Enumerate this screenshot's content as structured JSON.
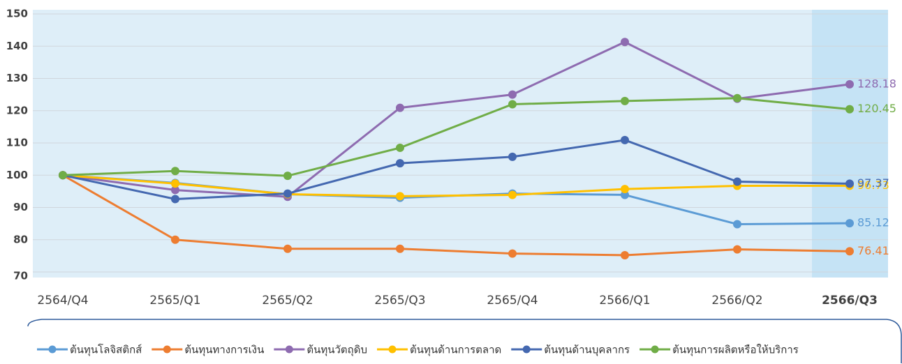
{
  "chart_data": {
    "type": "line",
    "categories": [
      "2564/Q4",
      "2565/Q1",
      "2565/Q2",
      "2565/Q3",
      "2565/Q4",
      "2566/Q1",
      "2566/Q2",
      "2566/Q3"
    ],
    "highlight_category": 7,
    "series": [
      {
        "name": "ต้นทุนโลจิสติกส์",
        "color": "#5b9bd5",
        "values": [
          100,
          97.6,
          94.1,
          93.0,
          94.3,
          93.9,
          84.8,
          85.12
        ]
      },
      {
        "name": "ต้นทุนทางการเงิน",
        "color": "#ed7d31",
        "values": [
          100,
          80.0,
          77.2,
          77.2,
          75.7,
          75.2,
          77.0,
          76.41
        ]
      },
      {
        "name": "ต้นทุนวัตถุดิบ",
        "color": "#8e6bb0",
        "values": [
          100,
          95.4,
          93.3,
          120.9,
          125.0,
          141.3,
          123.7,
          128.18
        ]
      },
      {
        "name": "ต้นทุนด้านการตลาด",
        "color": "#ffc000",
        "values": [
          100,
          97.4,
          94.1,
          93.5,
          93.9,
          95.7,
          96.7,
          96.73
        ]
      },
      {
        "name": "ต้นทุนด้านบุคลากร",
        "color": "#4468b0",
        "values": [
          100,
          92.6,
          94.3,
          103.7,
          105.7,
          110.9,
          98.0,
          97.37
        ]
      },
      {
        "name": "ต้นทุนการผลิตหรือให้บริการ",
        "color": "#70ad47",
        "values": [
          100,
          101.3,
          99.8,
          108.5,
          122.0,
          123.0,
          123.9,
          120.45
        ]
      }
    ],
    "ylim": [
      70,
      150
    ],
    "yticks": [
      70,
      80,
      90,
      100,
      110,
      120,
      130,
      140,
      150
    ],
    "grid": true
  }
}
